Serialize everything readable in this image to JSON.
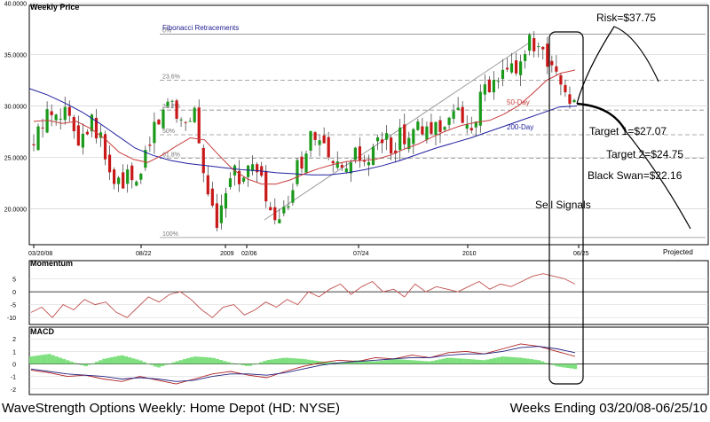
{
  "price_panel": {
    "title": "Weekly Price"
  },
  "momentum_panel": {
    "title": "Momentum"
  },
  "macd_panel": {
    "title": "MACD"
  },
  "fibonacci": {
    "title": "Fibonacci Retracements",
    "levels": [
      {
        "label": "0%",
        "price": 37.0
      },
      {
        "label": "23.6%",
        "price": 32.5
      },
      {
        "label": "38.2%",
        "price": 29.6
      },
      {
        "label": "50%",
        "price": 27.2
      },
      {
        "label": "61.8%",
        "price": 24.9
      },
      {
        "label": "100%",
        "price": 17.2
      }
    ]
  },
  "ma_labels": {
    "ma50": "50-Day",
    "ma200": "200-Day"
  },
  "annotations": {
    "risk": "Risk=$37.75",
    "target1": "Target 1=$27.07",
    "target2": "Target 2=$24.75",
    "black_swan": "Black Swan=$22.16",
    "sell_signals": "Sell Signals"
  },
  "x_axis": {
    "tick_labels": [
      "03/20/08",
      "08/22",
      "2009",
      "02/06",
      "07/24",
      "2010",
      "06/25"
    ],
    "projected_label": "Projected"
  },
  "footer": {
    "left": "WaveStrength Options Weekly: Home Depot (HD: NYSE)",
    "right": "Weeks Ending 03/20/08-06/25/10"
  },
  "colors": {
    "up_candle": "#1a9a1a",
    "down_candle": "#c81818",
    "ma50": "#c83c3c",
    "ma200": "#2020a0",
    "fib_title": "#1c1c90",
    "histogram": "#7fe07f",
    "grid": "#c8c8c8"
  },
  "chart_data": [
    {
      "type": "candlestick",
      "title": "Weekly Price",
      "ylim": [
        16.5,
        39.8
      ],
      "yticks": [
        "20.0000",
        "25.0000",
        "30.0000",
        "35.0000",
        "40.0000"
      ],
      "ytick_values": [
        20,
        25,
        30,
        35,
        40
      ],
      "close_path": [
        26,
        29,
        30,
        29,
        27,
        29,
        26,
        22,
        23,
        22,
        27,
        29,
        31,
        28,
        30,
        21,
        19,
        24,
        23,
        24,
        22,
        18,
        20,
        24,
        27,
        26,
        24,
        23,
        25,
        24,
        27,
        26,
        27,
        28,
        27,
        28,
        29,
        29,
        28,
        31,
        32,
        33,
        34,
        36,
        35,
        33,
        32,
        30
      ],
      "ma50_path": [
        28.5,
        28.6,
        28.3,
        28.5,
        27.8,
        26.8,
        25.5,
        24.8,
        24.5,
        25.2,
        26.1,
        26.9,
        26.7,
        25.2,
        23.8,
        22.9,
        22.4,
        22.4,
        22.8,
        23.4,
        23.9,
        24.3,
        24.6,
        24.7,
        24.8,
        25.2,
        25.8,
        26.3,
        27.0,
        27.6,
        28.1,
        28.4,
        28.6,
        29.2,
        30.0,
        31.2,
        32.5,
        33.2,
        33.5
      ],
      "ma200_path": [
        31.7,
        31.1,
        30.3,
        29.4,
        28.3,
        27.1,
        25.9,
        25.2,
        24.7,
        24.4,
        24.2,
        24.0,
        23.8,
        23.7,
        23.5,
        23.4,
        23.3,
        23.3,
        23.5,
        23.8,
        24.2,
        24.7,
        25.3,
        25.9,
        26.4,
        26.9,
        27.5,
        28.1,
        28.7,
        29.3,
        29.9,
        30.0
      ],
      "projection": {
        "risk": 37.75,
        "target1": 27.07,
        "target2": 24.75,
        "black_swan": 22.16
      }
    },
    {
      "type": "line",
      "title": "Momentum",
      "ylim": [
        -12,
        10
      ],
      "yticks": [
        "-10",
        "-5",
        "0",
        "5"
      ],
      "ytick_values": [
        -10,
        -5,
        0,
        5
      ],
      "series": [
        {
          "values": [
            -8,
            -6,
            -10,
            -5,
            -7,
            -3,
            -5,
            -4,
            -8,
            -10,
            -6,
            -2,
            -4,
            -1,
            0,
            -3,
            -7,
            -10,
            -6,
            -5,
            -9,
            -7,
            -4,
            -6,
            -3,
            -5,
            0,
            -2,
            1,
            3,
            -1,
            2,
            4,
            0,
            1,
            -2,
            3,
            0,
            2,
            1,
            0,
            2,
            4,
            1,
            3,
            2,
            4,
            6,
            7,
            6,
            5,
            3
          ]
        }
      ]
    },
    {
      "type": "line",
      "title": "MACD",
      "ylim": [
        -2.3,
        2.3
      ],
      "yticks": [
        "-2",
        "-1",
        "0",
        "1",
        "2"
      ],
      "ytick_values": [
        -2,
        -1,
        0,
        1,
        2
      ],
      "series": [
        {
          "values": [
            -0.5,
            -0.7,
            -1.0,
            -0.9,
            -1.2,
            -1.4,
            -1.0,
            -1.3,
            -1.6,
            -1.2,
            -0.8,
            -0.6,
            -0.9,
            -1.1,
            -0.6,
            -0.2,
            0.1,
            0.3,
            0.2,
            0.5,
            0.4,
            0.7,
            0.5,
            0.9,
            1.0,
            0.8,
            1.2,
            1.6,
            1.4,
            1.0,
            0.6
          ]
        },
        {
          "values": [
            -0.4,
            -0.6,
            -0.8,
            -0.9,
            -1.0,
            -1.2,
            -1.1,
            -1.2,
            -1.4,
            -1.3,
            -1.0,
            -0.8,
            -0.8,
            -0.9,
            -0.7,
            -0.4,
            -0.1,
            0.1,
            0.2,
            0.3,
            0.4,
            0.5,
            0.5,
            0.7,
            0.8,
            0.8,
            1.0,
            1.3,
            1.4,
            1.2,
            0.9
          ]
        }
      ],
      "histogram": [
        0.6,
        0.8,
        0.3,
        -0.2,
        0.4,
        0.7,
        0.3,
        -0.3,
        0.2,
        0.6,
        0.5,
        0.1,
        -0.2,
        0.3,
        0.5,
        0.4,
        0.2,
        0.1,
        0.3,
        0.2,
        0.4,
        0.3,
        0.2,
        0.5,
        0.4,
        0.3,
        0.6,
        0.5,
        0.3,
        -0.2,
        -0.4
      ]
    }
  ]
}
